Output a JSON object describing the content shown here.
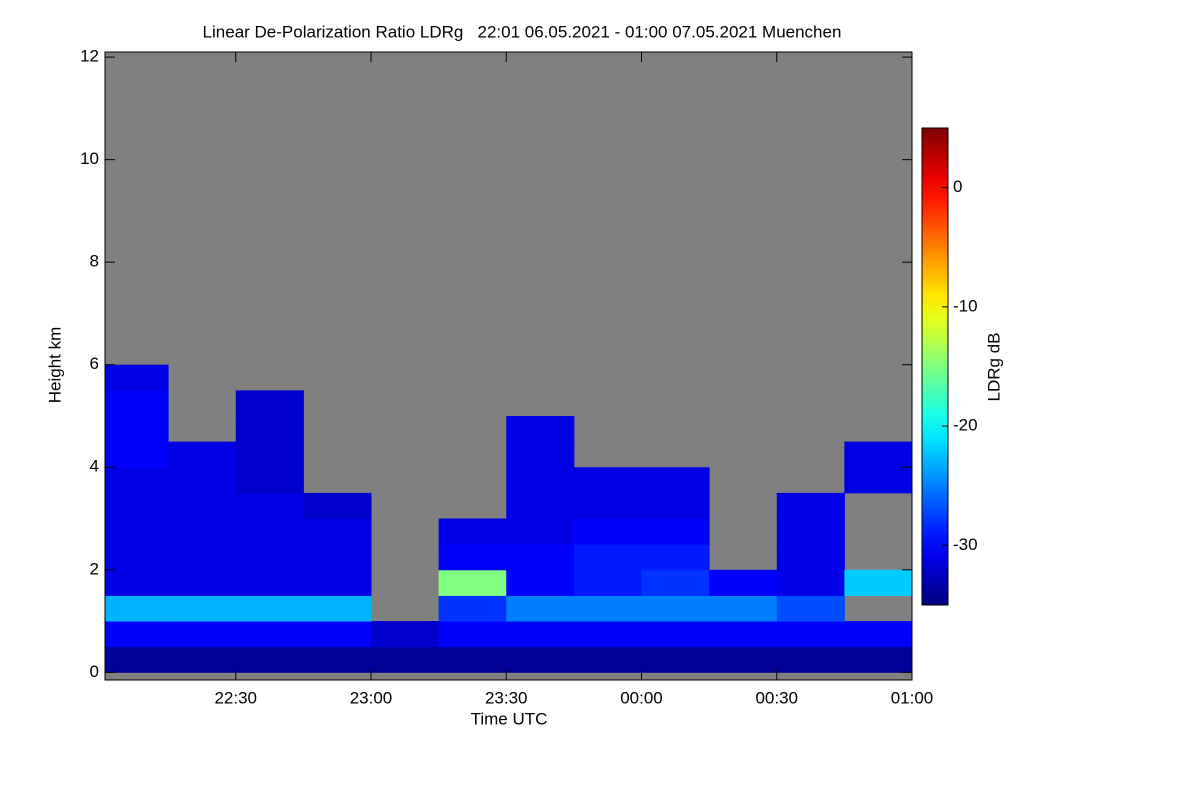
{
  "chart_data": {
    "type": "heatmap",
    "title": "Linear De-Polarization Ratio LDRg   22:01 06.05.2021 - 01:00 07.05.2021 Muenchen",
    "x_label": "Time UTC",
    "y_label": "Height km",
    "colorbar_label": "LDRg dB",
    "colormap": "jet",
    "background_color": "#808080",
    "xlim": [
      1,
      180
    ],
    "xticks": [
      {
        "value": 30,
        "label": "22:30"
      },
      {
        "value": 60,
        "label": "23:00"
      },
      {
        "value": 90,
        "label": "23:30"
      },
      {
        "value": 120,
        "label": "00:00"
      },
      {
        "value": 150,
        "label": "00:30"
      },
      {
        "value": 180,
        "label": "01:00"
      }
    ],
    "ylim": [
      -0.15,
      12.1
    ],
    "yticks": [
      0,
      2,
      4,
      6,
      8,
      10,
      12
    ],
    "zlim": [
      -35,
      5
    ],
    "zticks": [
      0,
      -10,
      -20,
      -30
    ],
    "x_edges": [
      1,
      15,
      30,
      45,
      60,
      75,
      90,
      105,
      120,
      135,
      150,
      165,
      180
    ],
    "y_edges": [
      0,
      0.5,
      1,
      1.5,
      2,
      2.5,
      3,
      3.5,
      4,
      4.5,
      5,
      5.5,
      6
    ],
    "values": [
      [
        -34,
        -34,
        -34,
        -34,
        -34,
        -34,
        -34,
        -34,
        -34,
        -34,
        -34,
        -34
      ],
      [
        -30,
        -30,
        -30,
        -30,
        -32,
        -30,
        -30,
        -30,
        -30,
        -30,
        -30,
        -30
      ],
      [
        -23,
        -23,
        -23,
        -23,
        null,
        -28,
        -25,
        -25,
        -25,
        -25,
        -27,
        null
      ],
      [
        -31,
        -31,
        -31,
        -31,
        null,
        -15,
        -30,
        -29,
        -28,
        -30,
        -31,
        -22
      ],
      [
        -31,
        -31,
        -31,
        -31,
        null,
        -30,
        -30,
        -29,
        -29,
        null,
        -31,
        null
      ],
      [
        -31,
        -31,
        -31,
        -31,
        null,
        -31,
        -31,
        -30,
        -30,
        null,
        -31,
        null
      ],
      [
        -31,
        -31,
        -31,
        -32,
        null,
        null,
        -31,
        -31,
        -31,
        null,
        -31,
        null
      ],
      [
        -31,
        -31,
        -32,
        null,
        null,
        null,
        -31,
        -31,
        -31,
        null,
        null,
        -31
      ],
      [
        -30,
        -31,
        -32,
        null,
        null,
        null,
        -31,
        null,
        null,
        null,
        null,
        -31
      ],
      [
        -30,
        null,
        -32,
        null,
        null,
        null,
        -31,
        null,
        null,
        null,
        null,
        null
      ],
      [
        -30,
        null,
        -32,
        null,
        null,
        null,
        null,
        null,
        null,
        null,
        null,
        null
      ],
      [
        -31,
        null,
        null,
        null,
        null,
        null,
        null,
        null,
        null,
        null,
        null,
        null
      ]
    ]
  }
}
